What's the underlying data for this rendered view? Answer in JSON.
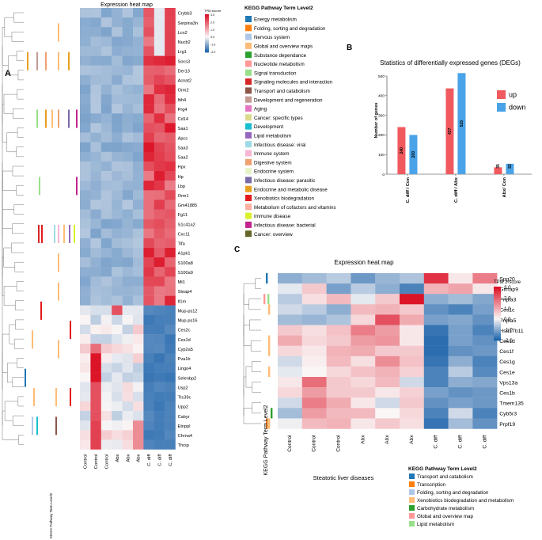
{
  "panel_a": {
    "label": "A",
    "title": "Expression heat map",
    "legend_title": "TPM zscore",
    "legend_ticks": [
      "3.0",
      "2.0",
      "1.0",
      "0.0",
      "-1.0",
      "-2.0"
    ],
    "side_label": "KEGG Pathway Term Level2",
    "genes": [
      "Crybb3",
      "Serpina3n",
      "Lcn2",
      "Nucb2",
      "Lrg1",
      "Socs3",
      "Der13",
      "Acnat2",
      "Orm2",
      "Itih4",
      "Prg4",
      "Cd14",
      "Saa1",
      "Apcs",
      "Saa3",
      "Saa2",
      "Hpx",
      "Hp",
      "Lbp",
      "Orm1",
      "Gm41885",
      "Fg11",
      "S1c41a2",
      "Cxc11",
      "Tifa",
      "A1pk1",
      "S100a8",
      "S100a9",
      "Mt1",
      "Steap4",
      "Il1m",
      "Mup-ps12",
      "Mup-ps16",
      "Ces2c",
      "Ces1d",
      "Cyp2a5",
      "Pva1b",
      "Lingo4",
      "Selenbp2",
      "Usp2",
      "Ttc39c",
      "Upp2",
      "Cabyr",
      "Etnppl",
      "Chrna4",
      "Thrsp"
    ],
    "samples": [
      "Control",
      "Control",
      "Control",
      "Abx",
      "Abx",
      "Abx",
      "C. diff",
      "C. diff",
      "C. diff"
    ]
  },
  "kegg_legend_a": {
    "title": "KEGG Pathway Term Level2",
    "items": [
      {
        "label": "Energy metabolism",
        "color": "#1f77b4"
      },
      {
        "label": "Folding, sorting and degradation",
        "color": "#ff7f0e"
      },
      {
        "label": "Nervous system",
        "color": "#aec7e8"
      },
      {
        "label": "Global and overview maps",
        "color": "#ffbb78"
      },
      {
        "label": "Substance dependance",
        "color": "#2ca02c"
      },
      {
        "label": "Nucleotide metabolism",
        "color": "#ff9896"
      },
      {
        "label": "Signal transduction",
        "color": "#98df8a"
      },
      {
        "label": "Signaling molecules and interaction",
        "color": "#d62728"
      },
      {
        "label": "Transport and catabolism",
        "color": "#8c564b"
      },
      {
        "label": "Development and regeneration",
        "color": "#c49c94"
      },
      {
        "label": "Aging",
        "color": "#e377c2"
      },
      {
        "label": "Cancer: specific types",
        "color": "#dbdb8d"
      },
      {
        "label": "Development",
        "color": "#17becf"
      },
      {
        "label": "Lipid metabolism",
        "color": "#9467bd"
      },
      {
        "label": "Infectious disease: viral",
        "color": "#9edae5"
      },
      {
        "label": "Immune system",
        "color": "#f7b6d2"
      },
      {
        "label": "Digestive system",
        "color": "#f0a070"
      },
      {
        "label": "Endocrine system",
        "color": "#e6f5c9"
      },
      {
        "label": "Infectious disease: parasitic",
        "color": "#7b6aa6"
      },
      {
        "label": "Endocrine and metabolic disease",
        "color": "#e8a020"
      },
      {
        "label": "Xenobiotics biodegradation",
        "color": "#e31a1c"
      },
      {
        "label": "Metabolism of cofactors and vitamins",
        "color": "#fdb0a0"
      },
      {
        "label": "Immune disease",
        "color": "#d9f02a"
      },
      {
        "label": "Infectious disease: bacterial",
        "color": "#c2258c"
      },
      {
        "label": "Cancer: overview",
        "color": "#66662a"
      }
    ]
  },
  "chart_data": [
    {
      "type": "bar",
      "panel": "B",
      "title": "Statistics of differentially expressed genes (DEGs)",
      "ylabel": "Number of genes",
      "ylim": [
        0,
        500
      ],
      "yticks": [
        0,
        100,
        200,
        300,
        400,
        500
      ],
      "categories": [
        "C. diff / Con",
        "C. diff / Abx",
        "Abx/ Con"
      ],
      "series": [
        {
          "name": "up",
          "color": "#f05a5f",
          "values": [
            240,
            437,
            35
          ]
        },
        {
          "name": "down",
          "color": "#4aa3e8",
          "values": [
            200,
            515,
            53
          ]
        }
      ],
      "legend": "top-right"
    },
    {
      "type": "heatmap",
      "panel": "C",
      "title": "Expression heat map",
      "genes": [
        "Spg20",
        "Gimap9",
        "Pnpla3",
        "Ces1c",
        "Pnpla5",
        "Hsd17b11",
        "Ces1d",
        "Ces1f",
        "Ces1g",
        "Ces1e",
        "Vps13a",
        "Ces1b",
        "Tmem135",
        "Cyb5r3",
        "Prpf19"
      ],
      "samples": [
        "Control",
        "Control",
        "Control",
        "Abx",
        "Abx",
        "Abx",
        "C. diff",
        "C. diff",
        "C. diff"
      ],
      "legend_title": "TPM z-score",
      "scale_ticks": [
        "3.0",
        "2.0",
        "1.0",
        "0.0",
        "-1.0",
        "-2.0"
      ],
      "side_label": "KEGG Pathway Term Level2",
      "bottom_caption": "Steatotic liver diseases"
    }
  ],
  "panel_b": {
    "label": "B"
  },
  "panel_c": {
    "label": "C"
  },
  "kegg_legend_c": {
    "title": "KEGG Pathway Term Level2",
    "items": [
      {
        "label": "Transport and catabolism",
        "color": "#1f77b4"
      },
      {
        "label": "Transcription",
        "color": "#ff7f0e"
      },
      {
        "label": "Folding, sorting and degradation",
        "color": "#aec7e8"
      },
      {
        "label": "Xenobiotics biodegradation and metabolism",
        "color": "#ffbb78"
      },
      {
        "label": "Carbohydrate metabolism",
        "color": "#2ca02c"
      },
      {
        "label": "Global and overview map",
        "color": "#ff9896"
      },
      {
        "label": "Lipid metabolism",
        "color": "#98df8a"
      }
    ]
  }
}
